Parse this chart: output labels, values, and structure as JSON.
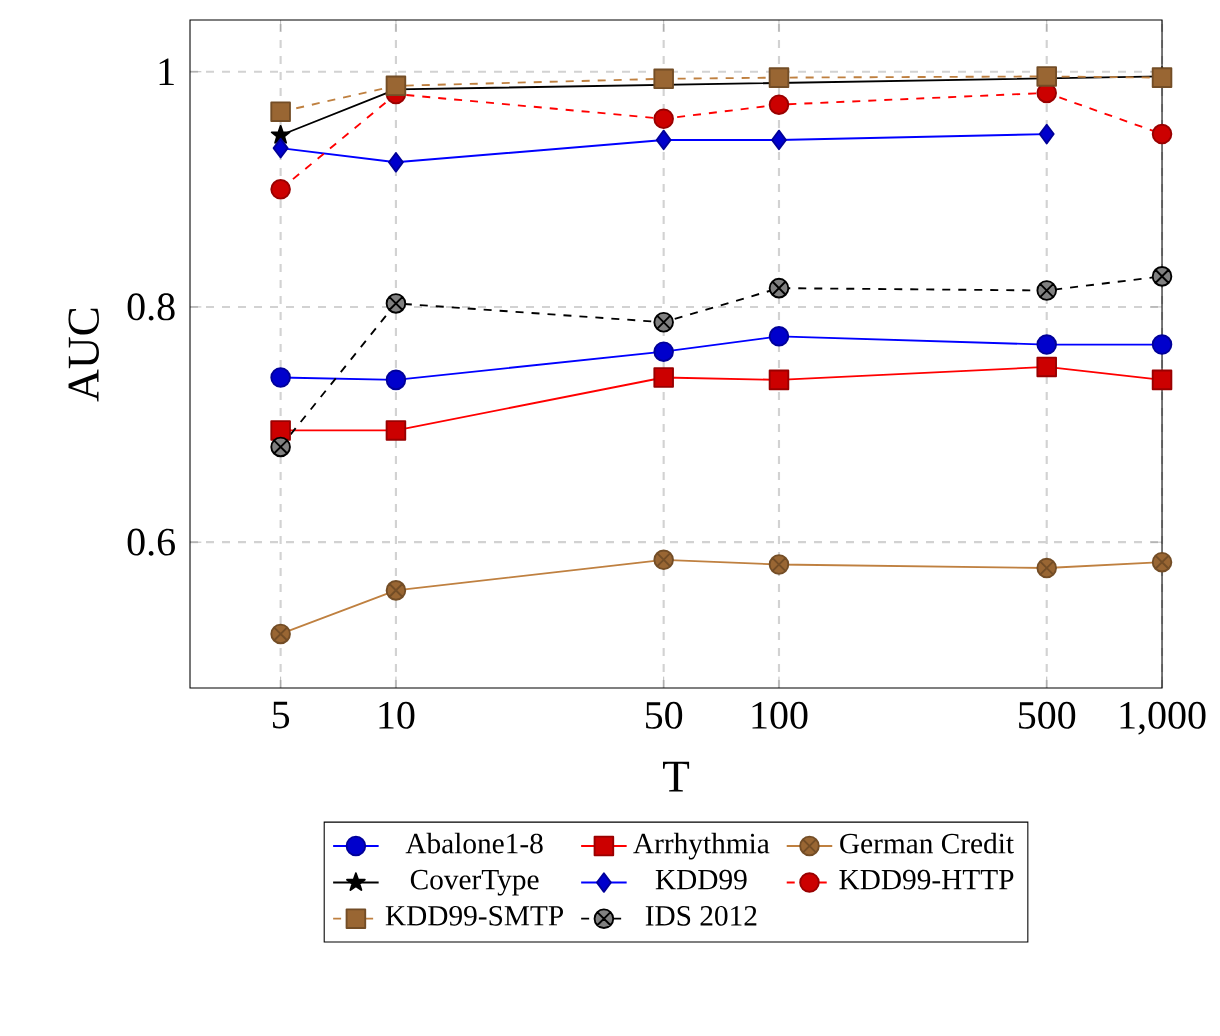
{
  "chart_data": {
    "type": "line",
    "xlabel": "T",
    "ylabel": "AUC",
    "log": "x",
    "grid": true,
    "legend": "bottom",
    "x": [
      5,
      10,
      50,
      100,
      500,
      1000
    ],
    "xlim": [
      2.9,
      1000
    ],
    "ylim": [
      0.476,
      1.044
    ],
    "xticks": [
      5,
      10,
      50,
      100,
      500,
      {
        "value": 1000,
        "label": "1,000"
      }
    ],
    "yticks": [
      {
        "value": 0.6,
        "label": "0.6"
      },
      {
        "value": 0.8,
        "label": "0.8"
      },
      {
        "value": 1,
        "label": "1"
      }
    ],
    "series": [
      {
        "name": "Abalone1-8",
        "color": "#0000ff",
        "marker": "circle",
        "line_style": "solid",
        "values": [
          0.74,
          0.738,
          0.762,
          0.775,
          0.768,
          0.768
        ]
      },
      {
        "name": "Arrhythmia",
        "color": "#ff0000",
        "marker": "square",
        "line_style": "solid",
        "values": [
          0.695,
          0.695,
          0.74,
          0.738,
          0.749,
          0.738
        ]
      },
      {
        "name": "German Credit",
        "color": "#bf8040",
        "marker": "cross",
        "line_style": "solid",
        "values": [
          0.522,
          0.559,
          0.585,
          0.581,
          0.578,
          0.583
        ]
      },
      {
        "name": "CoverType",
        "color": "#000000",
        "marker": "star",
        "line_style": "solid",
        "values": [
          0.946,
          0.985,
          null,
          null,
          null,
          0.996
        ]
      },
      {
        "name": "KDD99",
        "color": "#0000ff",
        "marker": "diamond",
        "line_style": "solid",
        "values": [
          0.935,
          0.923,
          0.942,
          0.942,
          0.947,
          null
        ]
      },
      {
        "name": "KDD99-HTTP",
        "color": "#ff0000",
        "marker": "circle",
        "line_style": "dashed",
        "values": [
          0.9,
          0.981,
          0.96,
          0.972,
          0.982,
          0.947
        ]
      },
      {
        "name": "KDD99-SMTP",
        "color": "#bf8040",
        "marker": "square",
        "line_style": "dashed",
        "values": [
          0.966,
          0.988,
          0.994,
          0.995,
          0.996,
          0.995
        ]
      },
      {
        "name": "IDS 2012",
        "color": "#000000",
        "marker": "cross",
        "line_style": "dashed",
        "values": [
          0.681,
          0.803,
          0.787,
          0.816,
          0.814,
          0.826
        ]
      }
    ]
  }
}
